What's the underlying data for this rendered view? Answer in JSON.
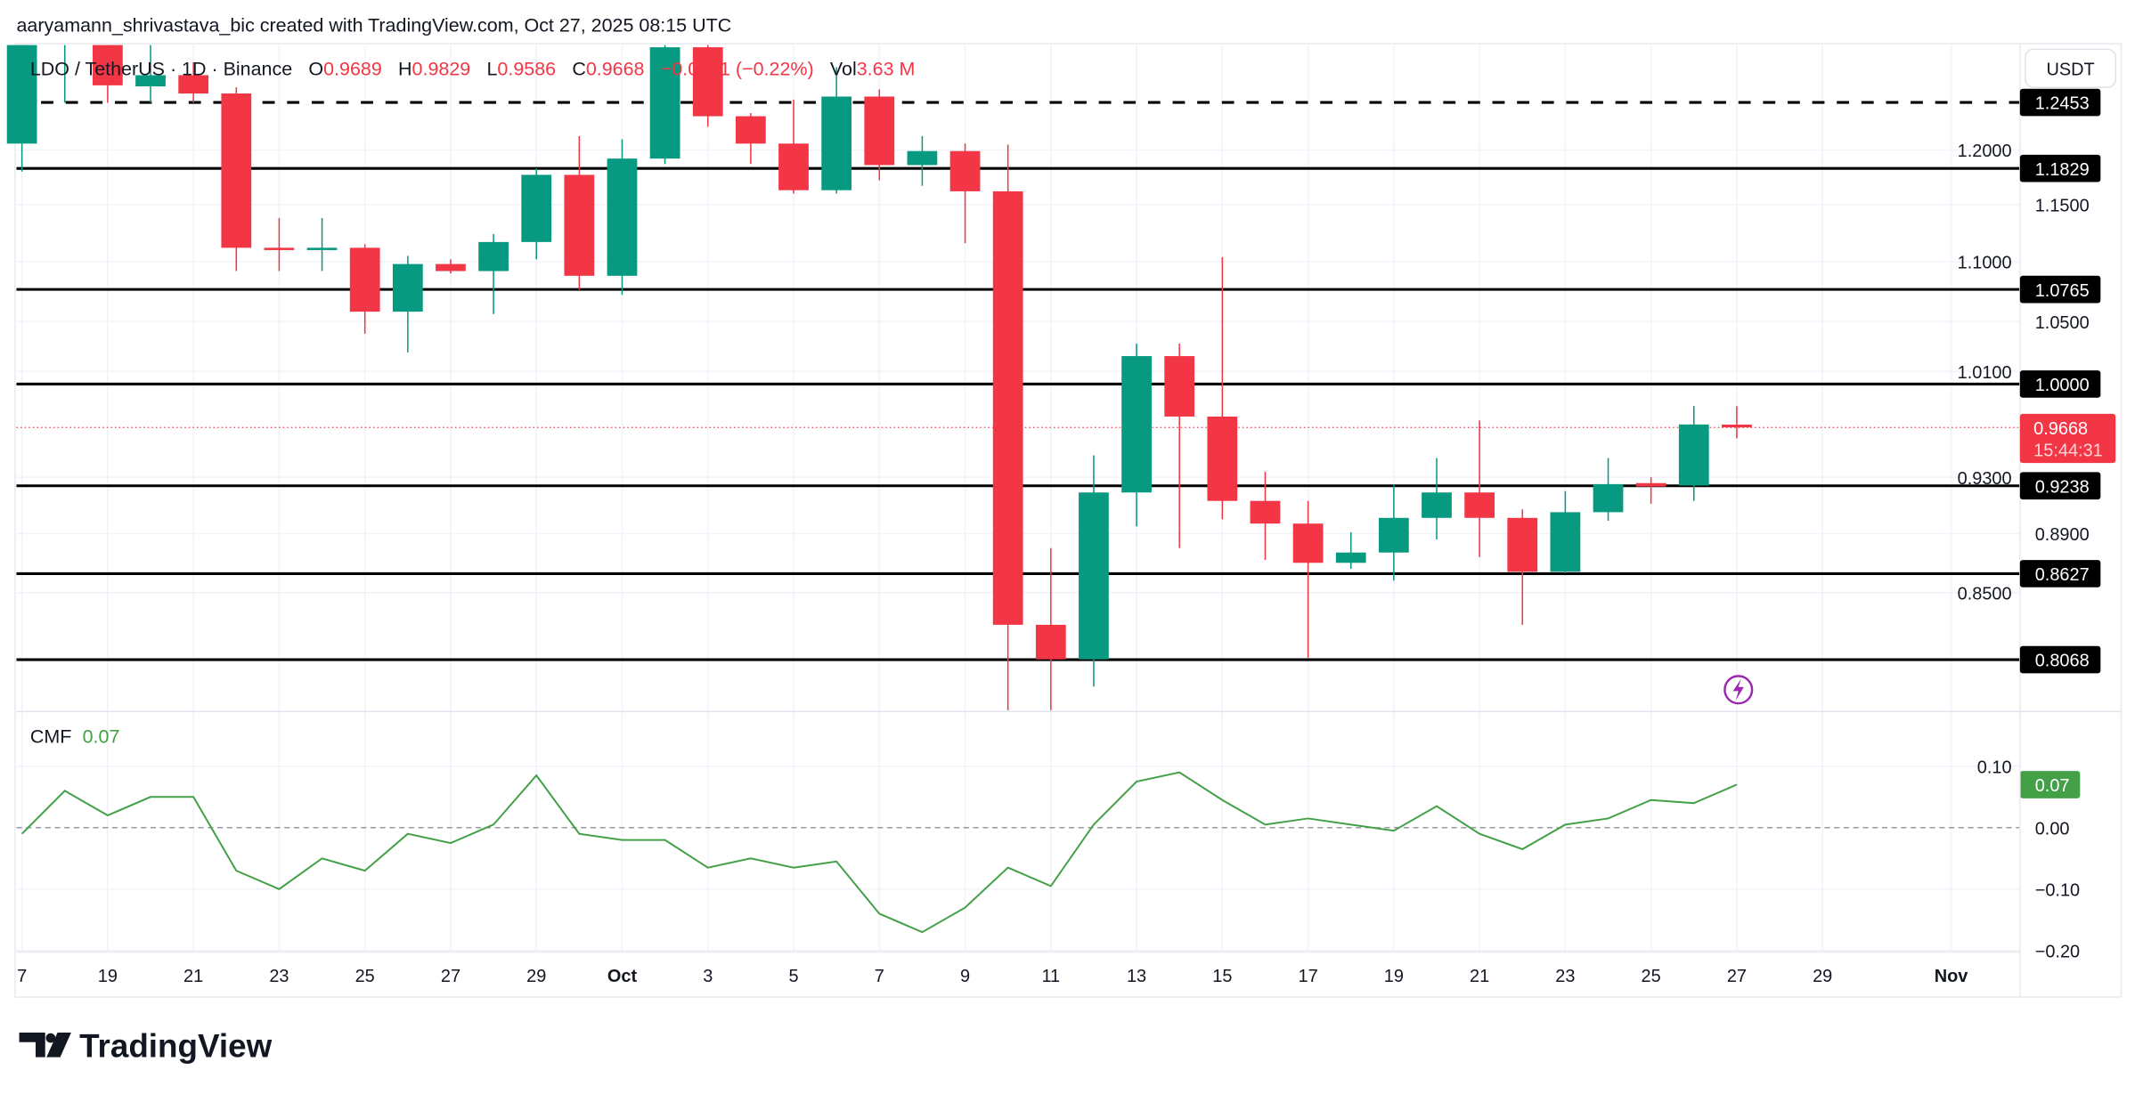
{
  "header": {
    "attribution": "aaryamann_shrivastava_bic created with TradingView.com, Oct 27, 2025 08:15 UTC"
  },
  "legend": {
    "symbol": "LDO / TetherUS · 1D · Binance",
    "o_label": "O",
    "o": "0.9689",
    "h_label": "H",
    "h": "0.9829",
    "l_label": "L",
    "l": "0.9586",
    "c_label": "C",
    "c": "0.9668",
    "change": "−0.0021 (−0.22%)",
    "vol_label": "Vol",
    "vol": "3.63 M"
  },
  "currency_button": "USDT",
  "current_price": {
    "value": "0.9668",
    "countdown": "15:44:31"
  },
  "cmf_legend": {
    "name": "CMF",
    "value": "0.07"
  },
  "logo_text": "TradingView",
  "colors": {
    "up": "#089981",
    "down": "#F23645",
    "cmf": "#43A047",
    "level": "#000000",
    "alert": "#9C27B0"
  },
  "icons": {
    "alert": "lightning-icon"
  },
  "chart_data": [
    {
      "type": "candlestick",
      "title": "LDO / TetherUS · 1D · Binance",
      "y_scale": "log",
      "ylim": [
        0.775,
        1.32
      ],
      "y_ticks": [
        "1.2000",
        "1.1500",
        "1.1000",
        "1.0500",
        "1.0100",
        "0.9300",
        "0.8900",
        "0.8500"
      ],
      "x_ticks": [
        {
          "date": "2025-09-17",
          "label": "7"
        },
        {
          "date": "2025-09-19",
          "label": "19"
        },
        {
          "date": "2025-09-21",
          "label": "21"
        },
        {
          "date": "2025-09-23",
          "label": "23"
        },
        {
          "date": "2025-09-25",
          "label": "25"
        },
        {
          "date": "2025-09-27",
          "label": "27"
        },
        {
          "date": "2025-09-29",
          "label": "29"
        },
        {
          "date": "2025-10-01",
          "label": "Oct",
          "bold": true
        },
        {
          "date": "2025-10-03",
          "label": "3"
        },
        {
          "date": "2025-10-05",
          "label": "5"
        },
        {
          "date": "2025-10-07",
          "label": "7"
        },
        {
          "date": "2025-10-09",
          "label": "9"
        },
        {
          "date": "2025-10-11",
          "label": "11"
        },
        {
          "date": "2025-10-13",
          "label": "13"
        },
        {
          "date": "2025-10-15",
          "label": "15"
        },
        {
          "date": "2025-10-17",
          "label": "17"
        },
        {
          "date": "2025-10-19",
          "label": "19"
        },
        {
          "date": "2025-10-21",
          "label": "21"
        },
        {
          "date": "2025-10-23",
          "label": "23"
        },
        {
          "date": "2025-10-25",
          "label": "25"
        },
        {
          "date": "2025-10-27",
          "label": "27"
        },
        {
          "date": "2025-10-29",
          "label": "29"
        },
        {
          "date": "2025-11-01",
          "label": "Nov",
          "bold": true
        }
      ],
      "levels": [
        {
          "value": 1.2453,
          "label": "1.2453",
          "style": "dashed"
        },
        {
          "value": 1.1829,
          "label": "1.1829",
          "style": "solid"
        },
        {
          "value": 1.0765,
          "label": "1.0765",
          "style": "solid"
        },
        {
          "value": 1.0,
          "label": "1.0000",
          "style": "solid"
        },
        {
          "value": 0.9238,
          "label": "0.9238",
          "style": "solid"
        },
        {
          "value": 0.8627,
          "label": "0.8627",
          "style": "solid"
        },
        {
          "value": 0.8068,
          "label": "0.8068",
          "style": "solid"
        }
      ],
      "candles": [
        {
          "date": "2025-09-17",
          "o": 1.206,
          "h": 1.33,
          "l": 1.18,
          "c": 1.31
        },
        {
          "date": "2025-09-18",
          "o": 1.31,
          "h": 1.37,
          "l": 1.245,
          "c": 1.35
        },
        {
          "date": "2025-09-19",
          "o": 1.31,
          "h": 1.32,
          "l": 1.245,
          "c": 1.262
        },
        {
          "date": "2025-09-20",
          "o": 1.261,
          "h": 1.33,
          "l": 1.245,
          "c": 1.272
        },
        {
          "date": "2025-09-21",
          "o": 1.272,
          "h": 1.285,
          "l": 1.245,
          "c": 1.254
        },
        {
          "date": "2025-09-22",
          "o": 1.254,
          "h": 1.26,
          "l": 1.092,
          "c": 1.112
        },
        {
          "date": "2025-09-23",
          "o": 1.112,
          "h": 1.138,
          "l": 1.092,
          "c": 1.11
        },
        {
          "date": "2025-09-24",
          "o": 1.11,
          "h": 1.138,
          "l": 1.092,
          "c": 1.112
        },
        {
          "date": "2025-09-25",
          "o": 1.112,
          "h": 1.115,
          "l": 1.04,
          "c": 1.058
        },
        {
          "date": "2025-09-26",
          "o": 1.058,
          "h": 1.105,
          "l": 1.025,
          "c": 1.098
        },
        {
          "date": "2025-09-27",
          "o": 1.098,
          "h": 1.102,
          "l": 1.09,
          "c": 1.092
        },
        {
          "date": "2025-09-28",
          "o": 1.092,
          "h": 1.124,
          "l": 1.056,
          "c": 1.117
        },
        {
          "date": "2025-09-29",
          "o": 1.117,
          "h": 1.183,
          "l": 1.102,
          "c": 1.177
        },
        {
          "date": "2025-09-30",
          "o": 1.177,
          "h": 1.213,
          "l": 1.076,
          "c": 1.088
        },
        {
          "date": "2025-10-01",
          "o": 1.088,
          "h": 1.21,
          "l": 1.072,
          "c": 1.192
        },
        {
          "date": "2025-10-02",
          "o": 1.192,
          "h": 1.33,
          "l": 1.187,
          "c": 1.3
        },
        {
          "date": "2025-10-03",
          "o": 1.3,
          "h": 1.33,
          "l": 1.222,
          "c": 1.232
        },
        {
          "date": "2025-10-04",
          "o": 1.232,
          "h": 1.235,
          "l": 1.187,
          "c": 1.206
        },
        {
          "date": "2025-10-05",
          "o": 1.206,
          "h": 1.248,
          "l": 1.16,
          "c": 1.163
        },
        {
          "date": "2025-10-06",
          "o": 1.163,
          "h": 1.28,
          "l": 1.16,
          "c": 1.251
        },
        {
          "date": "2025-10-07",
          "o": 1.251,
          "h": 1.258,
          "l": 1.172,
          "c": 1.186
        },
        {
          "date": "2025-10-08",
          "o": 1.186,
          "h": 1.213,
          "l": 1.167,
          "c": 1.199
        },
        {
          "date": "2025-10-09",
          "o": 1.199,
          "h": 1.206,
          "l": 1.116,
          "c": 1.162
        },
        {
          "date": "2025-10-10",
          "o": 1.162,
          "h": 1.205,
          "l": 0.775,
          "c": 0.829
        },
        {
          "date": "2025-10-11",
          "o": 0.829,
          "h": 0.88,
          "l": 0.775,
          "c": 0.807
        },
        {
          "date": "2025-10-12",
          "o": 0.807,
          "h": 0.946,
          "l": 0.79,
          "c": 0.919
        },
        {
          "date": "2025-10-13",
          "o": 0.919,
          "h": 1.032,
          "l": 0.895,
          "c": 1.022
        },
        {
          "date": "2025-10-14",
          "o": 1.022,
          "h": 1.032,
          "l": 0.88,
          "c": 0.975
        },
        {
          "date": "2025-10-15",
          "o": 0.975,
          "h": 1.104,
          "l": 0.9,
          "c": 0.913
        },
        {
          "date": "2025-10-16",
          "o": 0.913,
          "h": 0.934,
          "l": 0.872,
          "c": 0.897
        },
        {
          "date": "2025-10-17",
          "o": 0.897,
          "h": 0.913,
          "l": 0.808,
          "c": 0.87
        },
        {
          "date": "2025-10-18",
          "o": 0.87,
          "h": 0.891,
          "l": 0.866,
          "c": 0.877
        },
        {
          "date": "2025-10-19",
          "o": 0.877,
          "h": 0.925,
          "l": 0.858,
          "c": 0.901
        },
        {
          "date": "2025-10-20",
          "o": 0.901,
          "h": 0.944,
          "l": 0.886,
          "c": 0.919
        },
        {
          "date": "2025-10-21",
          "o": 0.919,
          "h": 0.972,
          "l": 0.874,
          "c": 0.901
        },
        {
          "date": "2025-10-22",
          "o": 0.901,
          "h": 0.907,
          "l": 0.829,
          "c": 0.864
        },
        {
          "date": "2025-10-23",
          "o": 0.864,
          "h": 0.92,
          "l": 0.863,
          "c": 0.905
        },
        {
          "date": "2025-10-24",
          "o": 0.905,
          "h": 0.944,
          "l": 0.899,
          "c": 0.925
        },
        {
          "date": "2025-10-25",
          "o": 0.925,
          "h": 0.93,
          "l": 0.911,
          "c": 0.924
        },
        {
          "date": "2025-10-26",
          "o": 0.924,
          "h": 0.983,
          "l": 0.913,
          "c": 0.969
        },
        {
          "date": "2025-10-27",
          "o": 0.9689,
          "h": 0.9829,
          "l": 0.9586,
          "c": 0.9668
        }
      ]
    },
    {
      "type": "line",
      "series": [
        {
          "name": "CMF",
          "color": "#43A047",
          "values": [
            {
              "date": "2025-09-17",
              "v": -0.01
            },
            {
              "date": "2025-09-18",
              "v": 0.06
            },
            {
              "date": "2025-09-19",
              "v": 0.02
            },
            {
              "date": "2025-09-20",
              "v": 0.05
            },
            {
              "date": "2025-09-21",
              "v": 0.05
            },
            {
              "date": "2025-09-22",
              "v": -0.07
            },
            {
              "date": "2025-09-23",
              "v": -0.1
            },
            {
              "date": "2025-09-24",
              "v": -0.05
            },
            {
              "date": "2025-09-25",
              "v": -0.07
            },
            {
              "date": "2025-09-26",
              "v": -0.01
            },
            {
              "date": "2025-09-27",
              "v": -0.025
            },
            {
              "date": "2025-09-28",
              "v": 0.005
            },
            {
              "date": "2025-09-29",
              "v": 0.085
            },
            {
              "date": "2025-09-30",
              "v": -0.01
            },
            {
              "date": "2025-10-01",
              "v": -0.02
            },
            {
              "date": "2025-10-02",
              "v": -0.02
            },
            {
              "date": "2025-10-03",
              "v": -0.065
            },
            {
              "date": "2025-10-04",
              "v": -0.05
            },
            {
              "date": "2025-10-05",
              "v": -0.065
            },
            {
              "date": "2025-10-06",
              "v": -0.055
            },
            {
              "date": "2025-10-07",
              "v": -0.14
            },
            {
              "date": "2025-10-08",
              "v": -0.17
            },
            {
              "date": "2025-10-09",
              "v": -0.13
            },
            {
              "date": "2025-10-10",
              "v": -0.065
            },
            {
              "date": "2025-10-11",
              "v": -0.095
            },
            {
              "date": "2025-10-12",
              "v": 0.005
            },
            {
              "date": "2025-10-13",
              "v": 0.075
            },
            {
              "date": "2025-10-14",
              "v": 0.09
            },
            {
              "date": "2025-10-15",
              "v": 0.045
            },
            {
              "date": "2025-10-16",
              "v": 0.005
            },
            {
              "date": "2025-10-17",
              "v": 0.015
            },
            {
              "date": "2025-10-18",
              "v": 0.005
            },
            {
              "date": "2025-10-19",
              "v": -0.005
            },
            {
              "date": "2025-10-20",
              "v": 0.035
            },
            {
              "date": "2025-10-21",
              "v": -0.01
            },
            {
              "date": "2025-10-22",
              "v": -0.035
            },
            {
              "date": "2025-10-23",
              "v": 0.005
            },
            {
              "date": "2025-10-24",
              "v": 0.015
            },
            {
              "date": "2025-10-25",
              "v": 0.045
            },
            {
              "date": "2025-10-26",
              "v": 0.04
            },
            {
              "date": "2025-10-27",
              "v": 0.07
            }
          ]
        }
      ],
      "ylim": [
        -0.21,
        0.13
      ],
      "y_ticks": [
        {
          "v": 0.1,
          "label": "0.10"
        },
        {
          "v": 0.0,
          "label": "0.00"
        },
        {
          "v": -0.1,
          "label": "−0.10"
        },
        {
          "v": -0.2,
          "label": "−0.20"
        }
      ],
      "zero_line": "dashed",
      "last_label": "0.07"
    }
  ]
}
